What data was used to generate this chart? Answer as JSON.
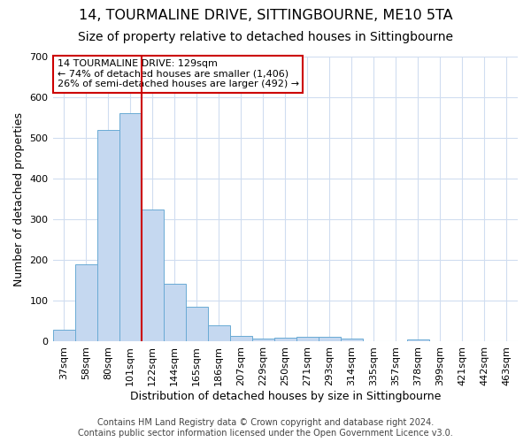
{
  "title_line1": "14, TOURMALINE DRIVE, SITTINGBOURNE, ME10 5TA",
  "title_line2": "Size of property relative to detached houses in Sittingbourne",
  "xlabel": "Distribution of detached houses by size in Sittingbourne",
  "ylabel": "Number of detached properties",
  "categories": [
    "37sqm",
    "58sqm",
    "80sqm",
    "101sqm",
    "122sqm",
    "144sqm",
    "165sqm",
    "186sqm",
    "207sqm",
    "229sqm",
    "250sqm",
    "271sqm",
    "293sqm",
    "314sqm",
    "335sqm",
    "357sqm",
    "378sqm",
    "399sqm",
    "421sqm",
    "442sqm",
    "463sqm"
  ],
  "values": [
    30,
    190,
    520,
    560,
    325,
    143,
    85,
    40,
    13,
    7,
    10,
    12,
    12,
    7,
    0,
    0,
    5,
    0,
    0,
    0,
    0
  ],
  "bar_color": "#c5d8f0",
  "bar_edgecolor": "#6aaad4",
  "red_line_index": 4,
  "red_line_color": "#cc0000",
  "ylim": [
    0,
    700
  ],
  "yticks": [
    0,
    100,
    200,
    300,
    400,
    500,
    600,
    700
  ],
  "annotation_text": "14 TOURMALINE DRIVE: 129sqm\n← 74% of detached houses are smaller (1,406)\n26% of semi-detached houses are larger (492) →",
  "annotation_box_edgecolor": "#cc0000",
  "annotation_box_facecolor": "#ffffff",
  "footer_line1": "Contains HM Land Registry data © Crown copyright and database right 2024.",
  "footer_line2": "Contains public sector information licensed under the Open Government Licence v3.0.",
  "bg_color": "#ffffff",
  "plot_bg_color": "#ffffff",
  "grid_color": "#d0ddf0",
  "title_fontsize": 11.5,
  "subtitle_fontsize": 10,
  "axis_label_fontsize": 9,
  "tick_fontsize": 8,
  "footer_fontsize": 7
}
